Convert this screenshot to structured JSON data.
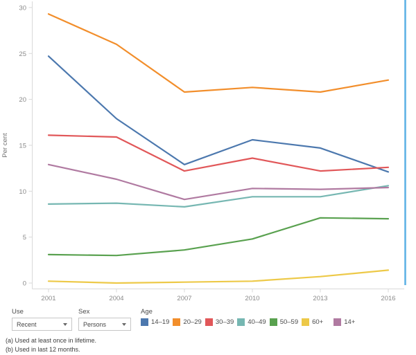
{
  "chart_data": {
    "type": "line",
    "title": "",
    "ylabel": "Per cent",
    "xlabel": "",
    "x": [
      "2001",
      "2004",
      "2007",
      "2010",
      "2013",
      "2016"
    ],
    "y_ticks": [
      0,
      5,
      10,
      15,
      20,
      25,
      30
    ],
    "ylim": [
      0,
      30
    ],
    "grid": false,
    "legend_title": "Age",
    "legend_position": "bottom",
    "series": [
      {
        "name": "14–19",
        "color": "#4c78ae",
        "values": [
          24.7,
          17.9,
          12.9,
          15.6,
          14.7,
          12.1
        ]
      },
      {
        "name": "20–29",
        "color": "#f28e2b",
        "values": [
          29.3,
          26.0,
          20.8,
          21.3,
          20.8,
          22.1
        ]
      },
      {
        "name": "30–39",
        "color": "#e15759",
        "values": [
          16.1,
          15.9,
          12.2,
          13.6,
          12.2,
          12.6
        ]
      },
      {
        "name": "40–49",
        "color": "#76b7b2",
        "values": [
          8.6,
          8.7,
          8.3,
          9.4,
          9.4,
          10.6
        ]
      },
      {
        "name": "50–59",
        "color": "#59a14f",
        "values": [
          3.1,
          3.0,
          3.6,
          4.8,
          7.1,
          7.0
        ]
      },
      {
        "name": "60+",
        "color": "#edc948",
        "values": [
          0.2,
          0.0,
          0.1,
          0.2,
          0.7,
          1.4
        ]
      },
      {
        "name": "14+",
        "color": "#b07aa1",
        "values": [
          12.9,
          11.3,
          9.1,
          10.3,
          10.2,
          10.4
        ]
      }
    ]
  },
  "controls": {
    "use": {
      "label": "Use",
      "value": "Recent"
    },
    "sex": {
      "label": "Sex",
      "value": "Persons"
    },
    "age": {
      "label": "Age"
    }
  },
  "footnotes": {
    "a": "(a) Used at least once in lifetime.",
    "b": "(b) Used in last 12 months."
  },
  "colors": {
    "highlight_line": "#5fb3e6",
    "axis_line": "#d9d9d9",
    "tick_text": "#8a8a8a",
    "axis_title_text": "#6e6e6e"
  }
}
